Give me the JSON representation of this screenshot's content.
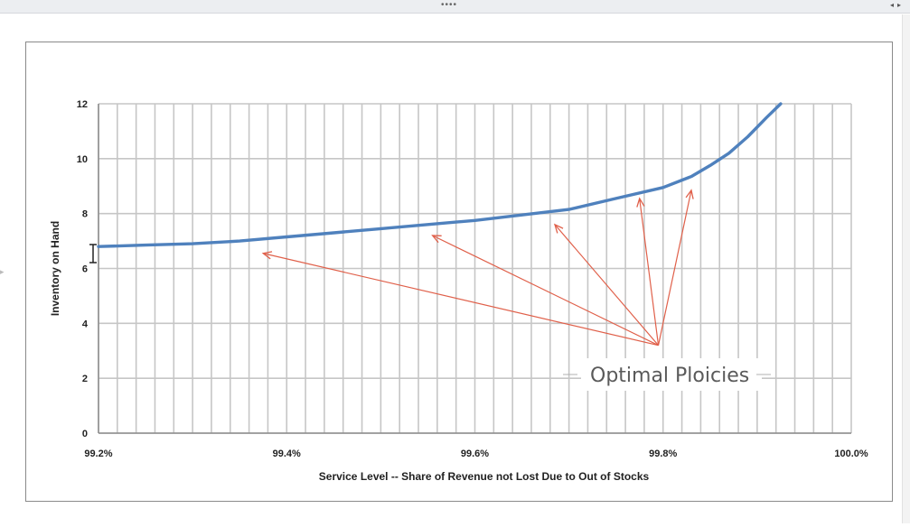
{
  "toolbar": {
    "grip": "••••",
    "nav": "◂▸"
  },
  "chart_data": {
    "type": "line",
    "title": "",
    "xlabel": "Service Level -- Share of Revenue not Lost Due to Out of Stocks",
    "ylabel": "Inventory on Hand",
    "xlim": [
      99.2,
      100.0
    ],
    "ylim": [
      0,
      12
    ],
    "grid": true,
    "x_ticks": [
      99.2,
      99.3,
      99.4,
      99.5,
      99.6,
      99.7,
      99.8,
      99.9,
      100.0
    ],
    "x_tick_labels": [
      "99.2%",
      "",
      "99.4%",
      "",
      "99.6%",
      "",
      "99.8%",
      "",
      "100.0%"
    ],
    "y_ticks": [
      0,
      2,
      4,
      6,
      8,
      10,
      12
    ],
    "y_tick_labels": [
      "0",
      "2",
      "4",
      "6",
      "8",
      "10",
      "12"
    ],
    "x_minor_step": 0.02,
    "series": [
      {
        "color": "#4f81bd",
        "x": [
          99.2,
          99.25,
          99.3,
          99.35,
          99.4,
          99.45,
          99.5,
          99.55,
          99.6,
          99.65,
          99.7,
          99.75,
          99.8,
          99.83,
          99.85,
          99.87,
          99.89,
          99.91,
          99.925
        ],
        "y": [
          6.8,
          6.85,
          6.9,
          7.0,
          7.15,
          7.3,
          7.45,
          7.6,
          7.75,
          7.95,
          8.15,
          8.55,
          8.95,
          9.35,
          9.75,
          10.2,
          10.8,
          11.5,
          12.0
        ]
      }
    ],
    "annotation": {
      "text": "Optimal Ploicies",
      "color": "#e0604a",
      "origin": [
        99.795,
        3.2
      ],
      "arrow_tips": [
        [
          99.375,
          6.55
        ],
        [
          99.555,
          7.2
        ],
        [
          99.685,
          7.6
        ],
        [
          99.775,
          8.55
        ],
        [
          99.83,
          8.85
        ]
      ]
    }
  }
}
